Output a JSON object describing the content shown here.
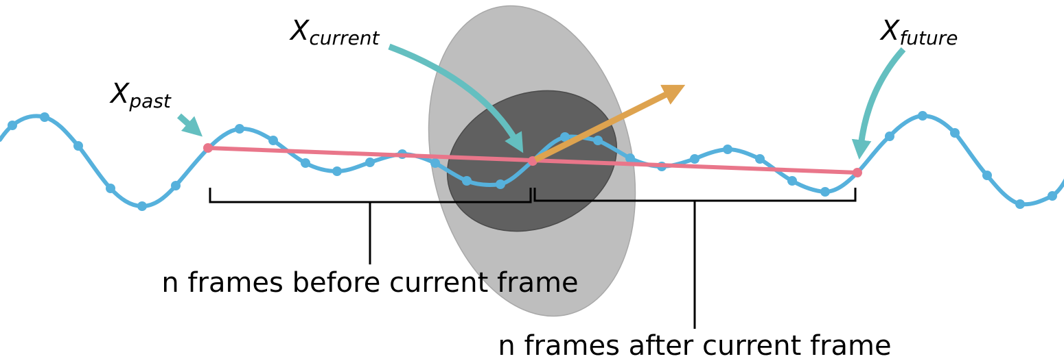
{
  "labels": {
    "x_past": {
      "main": "X",
      "sub": "past"
    },
    "x_current": {
      "main": "X",
      "sub": "current"
    },
    "x_future": {
      "main": "X",
      "sub": "future"
    }
  },
  "captions": {
    "before": "n frames before current frame",
    "after": "n frames after current frame"
  },
  "colors": {
    "signal": "#56b1dc",
    "trend_line": "#e9768a",
    "pointer_arrow": "#64bfc0",
    "direction_arrow": "#dea34f",
    "outer_ellipse": "#bebebe",
    "inner_ellipse": "#606060",
    "bracket": "#000000"
  }
}
